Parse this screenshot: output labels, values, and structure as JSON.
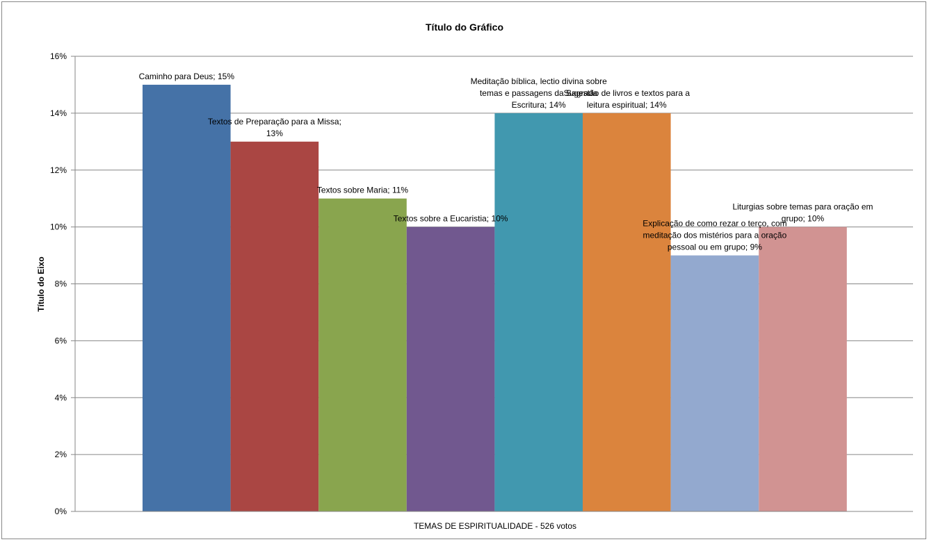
{
  "chart_data": {
    "type": "bar",
    "title": "Título do Gráfico",
    "xlabel": "TEMAS DE ESPIRITUALIDADE - 526 votos",
    "ylabel": "Título do Eixo",
    "ylim": [
      0,
      0.16
    ],
    "yticks": [
      "0%",
      "2%",
      "4%",
      "6%",
      "8%",
      "10%",
      "12%",
      "14%",
      "16%"
    ],
    "grid": true,
    "series": [
      {
        "name": "Caminho para Deus",
        "value": 0.15,
        "color": "#4572A7",
        "label_lines": [
          "Caminho para Deus; 15%"
        ]
      },
      {
        "name": "Textos de Preparação para a Missa",
        "value": 0.13,
        "color": "#AA4643",
        "label_lines": [
          "Textos de Preparação para a Missa;",
          "13%"
        ]
      },
      {
        "name": "Textos sobre Maria",
        "value": 0.11,
        "color": "#89A54E",
        "label_lines": [
          "Textos sobre Maria; 11%"
        ]
      },
      {
        "name": "Textos sobre a Eucaristia",
        "value": 0.1,
        "color": "#71588F",
        "label_lines": [
          "Textos sobre a Eucaristia; 10%"
        ]
      },
      {
        "name": "Meditação bíblica, lectio divina sobre temas e passagens da Sagrada Escritura",
        "value": 0.14,
        "color": "#4198AF",
        "label_lines": [
          "Meditação bíblica, lectio divina sobre",
          "temas e passagens da Sagrada",
          "Escritura; 14%"
        ]
      },
      {
        "name": "Sugestão de livros e textos para a leitura espiritual",
        "value": 0.14,
        "color": "#DB843D",
        "label_lines": [
          "Sugestão de livros e textos para a",
          "leitura espiritual; 14%"
        ]
      },
      {
        "name": "Explicação de como rezar o terço, com meditação dos mistérios para a oração pessoal ou em grupo",
        "value": 0.09,
        "color": "#93A9CF",
        "label_lines": [
          "Explicação de como rezar o terço, com",
          "meditação dos mistérios para a oração",
          "pessoal ou em grupo; 9%"
        ]
      },
      {
        "name": "Liturgias sobre temas para oração em grupo",
        "value": 0.1,
        "color": "#D19392",
        "label_lines": [
          "Liturgias sobre temas para oração em",
          "grupo; 10%"
        ]
      }
    ]
  }
}
